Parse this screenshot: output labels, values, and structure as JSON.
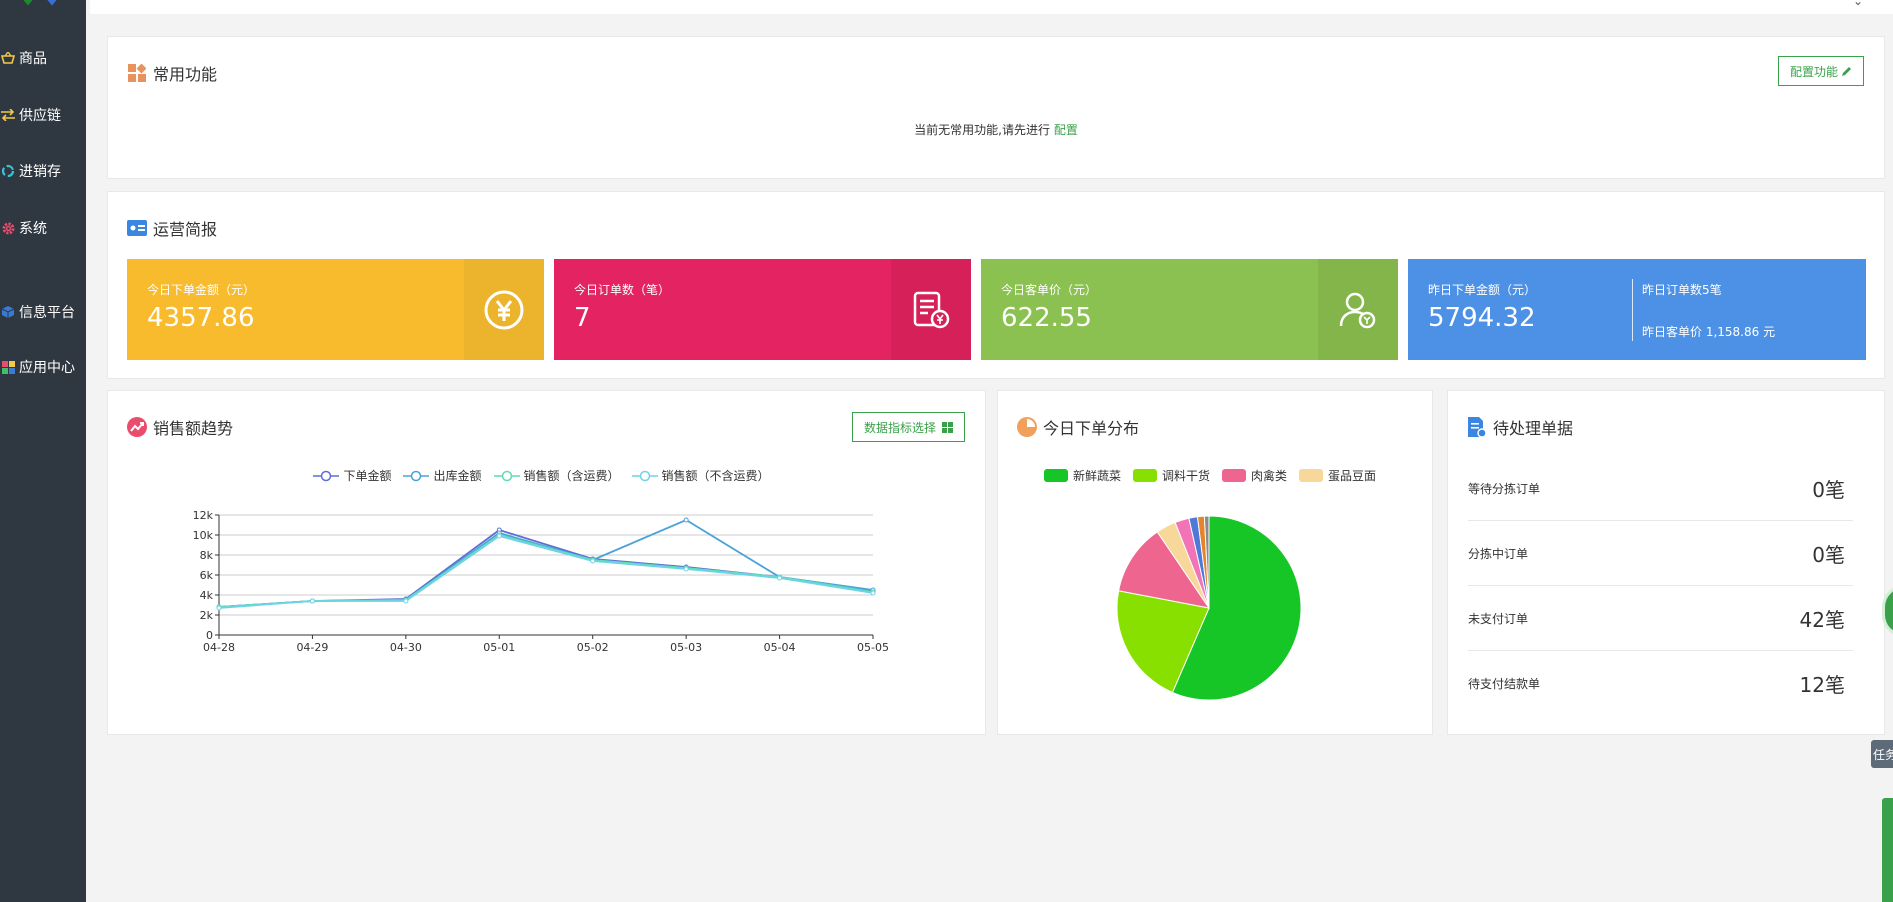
{
  "sidebar": {
    "items": [
      {
        "label": "商品",
        "icon": "basket-icon"
      },
      {
        "label": "供应链",
        "icon": "exchange-icon"
      },
      {
        "label": "进销存",
        "icon": "cycle-icon"
      },
      {
        "label": "系统",
        "icon": "gear-icon"
      },
      {
        "label": "信息平台",
        "icon": "cube-icon"
      },
      {
        "label": "应用中心",
        "icon": "grid-icon"
      }
    ]
  },
  "common": {
    "title": "常用功能",
    "config_button": "配置功能",
    "empty_text": "当前无常用功能,请先进行",
    "empty_link": "配置"
  },
  "report": {
    "title": "运营简报",
    "cards": [
      {
        "label": "今日下单金额（元）",
        "value": "4357.86",
        "color": "#f8bb2e",
        "icon_bg": "#ebb42c",
        "icon": "yen-circle-icon"
      },
      {
        "label": "今日订单数（笔）",
        "value": "7",
        "color": "#e42362",
        "icon_bg": "#d62059",
        "icon": "invoice-icon"
      },
      {
        "label": "今日客单价（元）",
        "value": "622.55",
        "color": "#8bc150",
        "icon_bg": "#83b54b",
        "icon": "user-yen-icon"
      }
    ],
    "yesterday": {
      "label": "昨日下单金额（元）",
      "value": "5794.32",
      "orders": "昨日订单数5笔",
      "avg": "昨日客单价 1,158.86 元",
      "color": "#4d91e6"
    }
  },
  "sales": {
    "title": "销售额趋势",
    "select_button": "数据指标选择"
  },
  "distribution": {
    "title": "今日下单分布"
  },
  "pending": {
    "title": "待处理单据",
    "rows": [
      {
        "label": "等待分拣订单",
        "value": "0笔"
      },
      {
        "label": "分拣中订单",
        "value": "0笔"
      },
      {
        "label": "未支付订单",
        "value": "42笔"
      },
      {
        "label": "待支付结款单",
        "value": "12笔"
      }
    ]
  },
  "floating": {
    "task_label": "任务"
  },
  "chart_data": [
    {
      "type": "line",
      "x": [
        "04-28",
        "04-29",
        "04-30",
        "05-01",
        "05-02",
        "05-03",
        "05-04",
        "05-05"
      ],
      "ylim": [
        0,
        12000
      ],
      "yticks": [
        "0",
        "2k",
        "4k",
        "6k",
        "8k",
        "10k",
        "12k"
      ],
      "ytick_values": [
        0,
        2000,
        4000,
        6000,
        8000,
        10000,
        12000
      ],
      "legend_placement": "top-center",
      "grid": true,
      "series": [
        {
          "name": "下单金额",
          "color": "#5b6fd6",
          "values": [
            2800,
            3400,
            3600,
            10500,
            7600,
            6800,
            5800,
            4400
          ]
        },
        {
          "name": "出库金额",
          "color": "#4aa3d8",
          "values": [
            2800,
            3400,
            3500,
            10200,
            7500,
            11500,
            5800,
            4500
          ]
        },
        {
          "name": "销售额（含运费）",
          "color": "#5fdcb3",
          "values": [
            2800,
            3400,
            3500,
            10000,
            7500,
            6700,
            5800,
            4300
          ]
        },
        {
          "name": "销售额（不含运费）",
          "color": "#6ed3e8",
          "values": [
            2700,
            3400,
            3400,
            9900,
            7400,
            6600,
            5700,
            4200
          ]
        }
      ]
    },
    {
      "type": "pie",
      "legend_placement": "top-center",
      "categories": [
        "新鲜蔬菜",
        "调料干货",
        "肉禽类",
        "蛋品豆面"
      ],
      "legend_colors": [
        "#16c526",
        "#88e000",
        "#ee6690",
        "#f7d79a"
      ],
      "slices": [
        {
          "value": 56.5,
          "color": "#16c526"
        },
        {
          "value": 21.5,
          "color": "#88e000"
        },
        {
          "value": 12.5,
          "color": "#ee6690"
        },
        {
          "value": 3.5,
          "color": "#f7d79a"
        },
        {
          "value": 2.5,
          "color": "#f273b6"
        },
        {
          "value": 1.5,
          "color": "#5078d8"
        },
        {
          "value": 1.2,
          "color": "#e4852b"
        },
        {
          "value": 0.8,
          "color": "#8a8a8a"
        }
      ]
    }
  ]
}
